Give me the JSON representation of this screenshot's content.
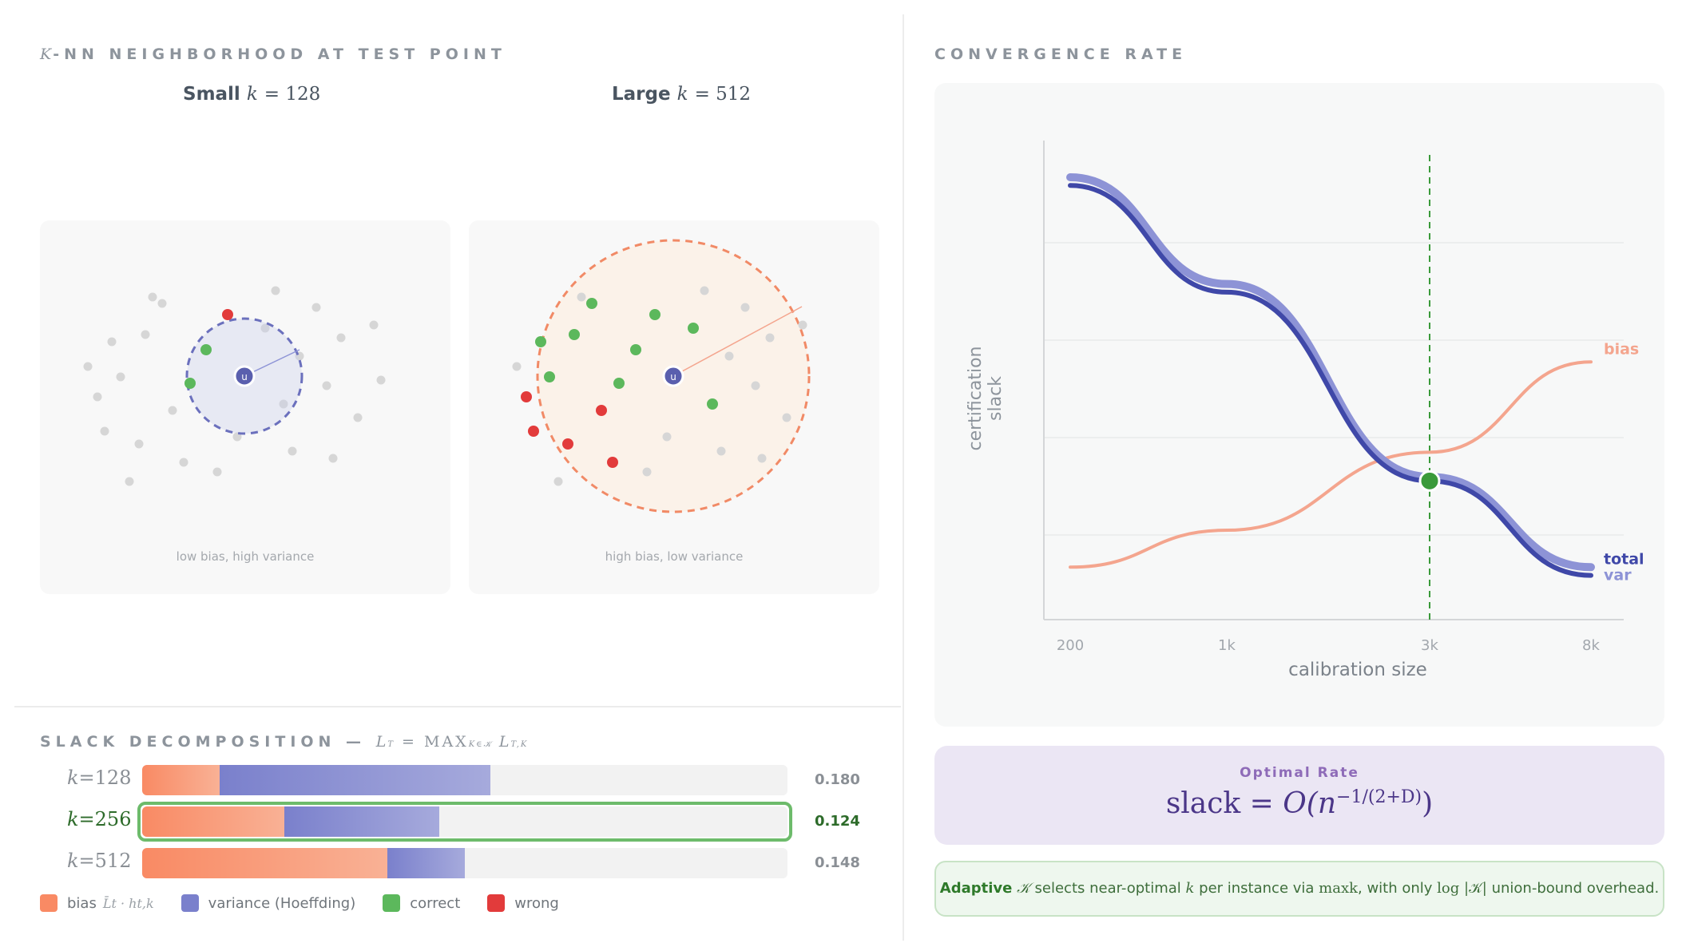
{
  "knn": {
    "title_k": "K",
    "title_rest": "-NN NEIGHBORHOOD AT TEST POINT",
    "small": {
      "prefix": "Small",
      "var": "k",
      "eq": "= 128",
      "caption": "low bias, high variance"
    },
    "large": {
      "prefix": "Large",
      "var": "k",
      "eq": "= 512",
      "caption": "high bias, low variance"
    },
    "test_point_label": "u"
  },
  "slack": {
    "title_prefix": "SLACK DECOMPOSITION — ",
    "formula": "L",
    "rows": [
      {
        "label_var": "k",
        "label_val": "=128",
        "bias": 0.12,
        "variance": 0.42,
        "value": "0.180",
        "highlight": false
      },
      {
        "label_var": "k",
        "label_val": "=256",
        "bias": 0.22,
        "variance": 0.24,
        "value": "0.124",
        "highlight": true
      },
      {
        "label_var": "k",
        "label_val": "=512",
        "bias": 0.38,
        "variance": 0.12,
        "value": "0.148",
        "highlight": false
      }
    ],
    "legend": [
      {
        "label": "bias",
        "suffix": "L̄t · ht,k",
        "color": "#f98a64"
      },
      {
        "label": "variance (Hoeffding)",
        "color": "#7a80cc"
      },
      {
        "label": "correct",
        "color": "#5cb85c"
      },
      {
        "label": "wrong",
        "color": "#e23b3b"
      }
    ]
  },
  "convergence": {
    "title": "CONVERGENCE RATE",
    "ylabel": "certification slack",
    "xlabel": "calibration size",
    "x_ticks": [
      "200",
      "1k",
      "3k",
      "8k"
    ],
    "series_labels": {
      "bias": "bias",
      "total": "total",
      "var": "var"
    },
    "colors": {
      "bias": "#f4a58e",
      "total": "#3f48a8",
      "var": "#8d93d6",
      "optimum": "#3a9a3a"
    }
  },
  "chart_data": {
    "type": "line",
    "xlabel": "calibration size",
    "ylabel": "certification slack",
    "x": [
      "200",
      "1k",
      "3k",
      "8k"
    ],
    "series": [
      {
        "name": "bias",
        "values": [
          0.05,
          0.14,
          0.33,
          0.55
        ]
      },
      {
        "name": "var",
        "values": [
          1.0,
          0.74,
          0.27,
          0.05
        ]
      },
      {
        "name": "total",
        "values": [
          0.98,
          0.72,
          0.26,
          0.03
        ]
      }
    ],
    "optimum_x": "3k"
  },
  "optimal": {
    "title": "Optimal Rate",
    "formula_lhs": "slack = ",
    "formula_rhs": "O(n",
    "exponent": "−1/(2+D)",
    "close": ")"
  },
  "note": {
    "strong": "Adaptive",
    "text1": " selects near-optimal ",
    "text2": " per instance via ",
    "text3": ", with only ",
    "text4": " union-bound overhead.",
    "m_K": "𝒦",
    "m_k": "k",
    "m_max": "maxk",
    "m_log": "log |𝒦|"
  }
}
